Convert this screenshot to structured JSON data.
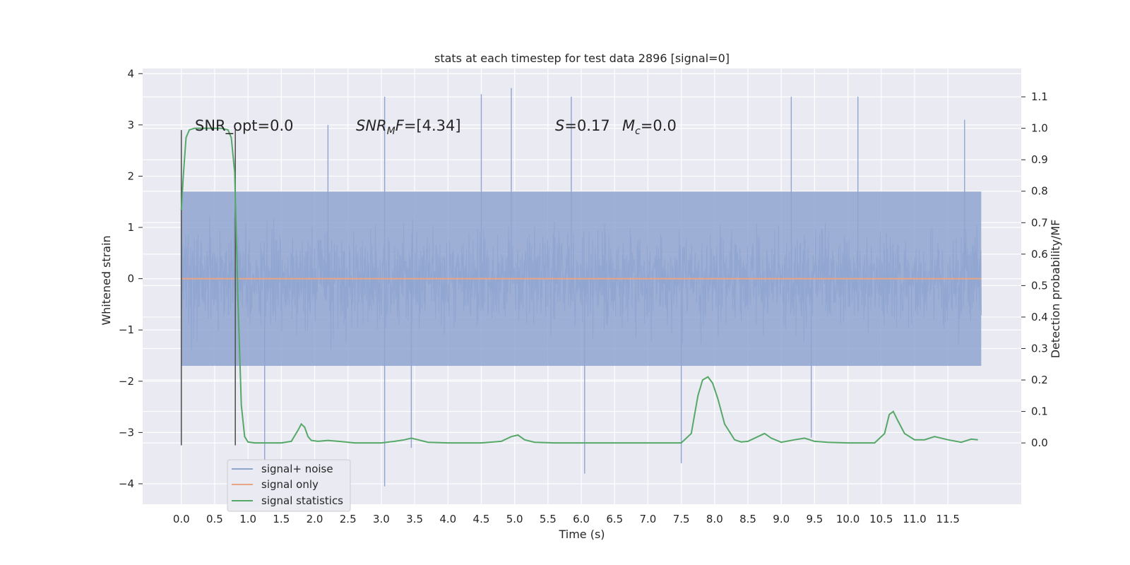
{
  "chart_data": {
    "type": "line",
    "title": "stats at each timestep for test data 2896 [signal=0]",
    "xlabel": "Time (s)",
    "ylabel": "Whitened strain",
    "y2label": "Detection probability/MF",
    "xlim": [
      -0.58,
      12.6
    ],
    "ylim": [
      -4.4,
      4.1
    ],
    "y2lim": [
      -0.195,
      1.19
    ],
    "x_ticks": [
      "0.0",
      "0.5",
      "1.0",
      "1.5",
      "2.0",
      "2.5",
      "3.0",
      "3.5",
      "4.0",
      "4.5",
      "5.0",
      "5.5",
      "6.0",
      "6.5",
      "7.0",
      "7.5",
      "8.0",
      "8.5",
      "9.0",
      "9.5",
      "10.0",
      "10.5",
      "11.0",
      "11.5"
    ],
    "y_ticks": [
      "4",
      "3",
      "2",
      "1",
      "0",
      "−1",
      "−2",
      "−3",
      "−4"
    ],
    "y2_ticks": [
      "1.1",
      "1.0",
      "0.9",
      "0.8",
      "0.7",
      "0.6",
      "0.5",
      "0.4",
      "0.3",
      "0.2",
      "0.1",
      "0.0"
    ],
    "grid": true,
    "legend_position": "lower-left",
    "annotations": {
      "snr_opt": "SNR_opt=0.0",
      "snr_mf_symbol": "SNR",
      "snr_mf_subscript": "M",
      "snr_mf_rest": "F=[4.34]",
      "s_symbol": "S",
      "s_value": "=0.17",
      "mc_symbol": "M",
      "mc_subscript": "c",
      "mc_value": "=0.0"
    },
    "vertical_markers": [
      0.0,
      0.81
    ],
    "series": [
      {
        "name": "signal+ noise",
        "color": "#8fa5d0",
        "kind": "noise",
        "x_range": [
          0.0,
          12.0
        ],
        "typical_range": [
          -1.7,
          1.7
        ],
        "max_abs": 4.05,
        "peaks": [
          [
            2.2,
            3.0
          ],
          [
            3.05,
            3.55
          ],
          [
            3.05,
            -4.05
          ],
          [
            4.5,
            3.6
          ],
          [
            4.95,
            3.72
          ],
          [
            5.85,
            3.55
          ],
          [
            6.05,
            -3.8
          ],
          [
            7.5,
            -3.6
          ],
          [
            9.15,
            3.55
          ],
          [
            9.45,
            -3.1
          ],
          [
            10.15,
            3.55
          ],
          [
            11.75,
            3.1
          ],
          [
            1.25,
            -3.6
          ],
          [
            3.45,
            -3.3
          ]
        ]
      },
      {
        "name": "signal only",
        "color": "#e8a686",
        "kind": "line",
        "x": [
          0.0,
          12.0
        ],
        "y": [
          0.0,
          0.0
        ]
      },
      {
        "name": "signal statistics",
        "color": "#55a868",
        "kind": "line",
        "axis": "right",
        "x": [
          0.0,
          0.03,
          0.07,
          0.12,
          0.2,
          0.3,
          0.45,
          0.6,
          0.7,
          0.75,
          0.8,
          0.85,
          0.9,
          0.95,
          1.0,
          1.1,
          1.2,
          1.5,
          1.65,
          1.75,
          1.8,
          1.85,
          1.9,
          1.95,
          2.05,
          2.2,
          2.4,
          2.6,
          3.0,
          3.2,
          3.35,
          3.45,
          3.55,
          3.7,
          4.0,
          4.5,
          4.8,
          4.95,
          5.05,
          5.15,
          5.3,
          5.6,
          6.0,
          7.0,
          7.5,
          7.65,
          7.75,
          7.82,
          7.9,
          7.97,
          8.05,
          8.15,
          8.3,
          8.4,
          8.5,
          8.65,
          8.75,
          8.85,
          9.0,
          9.2,
          9.35,
          9.5,
          9.7,
          10.0,
          10.4,
          10.55,
          10.62,
          10.68,
          10.75,
          10.85,
          11.0,
          11.15,
          11.3,
          11.5,
          11.7,
          11.85,
          11.95
        ],
        "y": [
          0.74,
          0.85,
          0.97,
          0.995,
          1.0,
          1.0,
          1.0,
          1.0,
          0.995,
          0.97,
          0.86,
          0.45,
          0.12,
          0.02,
          0.003,
          0.0,
          0.0,
          0.0,
          0.005,
          0.04,
          0.06,
          0.05,
          0.02,
          0.008,
          0.005,
          0.008,
          0.004,
          0.0,
          0.0,
          0.005,
          0.01,
          0.015,
          0.01,
          0.002,
          0.0,
          0.0,
          0.005,
          0.02,
          0.025,
          0.01,
          0.002,
          0.0,
          0.0,
          0.0,
          0.0,
          0.03,
          0.15,
          0.2,
          0.21,
          0.19,
          0.14,
          0.06,
          0.01,
          0.003,
          0.005,
          0.02,
          0.03,
          0.015,
          0.002,
          0.01,
          0.015,
          0.005,
          0.002,
          0.0,
          0.0,
          0.03,
          0.09,
          0.1,
          0.07,
          0.03,
          0.01,
          0.01,
          0.02,
          0.01,
          0.002,
          0.012,
          0.01
        ]
      }
    ]
  },
  "colors": {
    "plot_bg": "#eaeaf2",
    "grid": "#ffffff",
    "marker": "#555555"
  }
}
